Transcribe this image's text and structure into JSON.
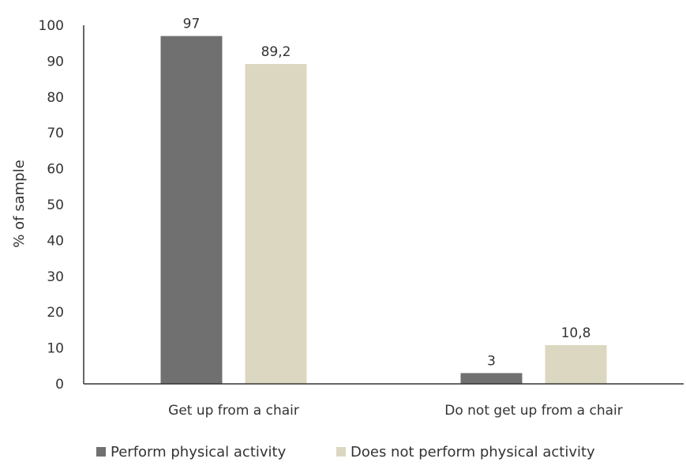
{
  "chart_data": {
    "type": "bar",
    "title": "",
    "xlabel": "",
    "ylabel": "% of sample",
    "ylim": [
      0,
      100
    ],
    "yticks": [
      0,
      10,
      20,
      30,
      40,
      50,
      60,
      70,
      80,
      90,
      100
    ],
    "grid": false,
    "legend_position": "bottom",
    "categories": [
      "Get up from a chair",
      "Do not get up from a chair"
    ],
    "series": [
      {
        "name": "Perform physical activity",
        "color": "#707070",
        "values": [
          97,
          3
        ],
        "labels": [
          "97",
          "3"
        ]
      },
      {
        "name": "Does not perform physical activity",
        "color": "#dcd7c0",
        "values": [
          89.2,
          10.8
        ],
        "labels": [
          "89,2",
          "10,8"
        ]
      }
    ]
  }
}
